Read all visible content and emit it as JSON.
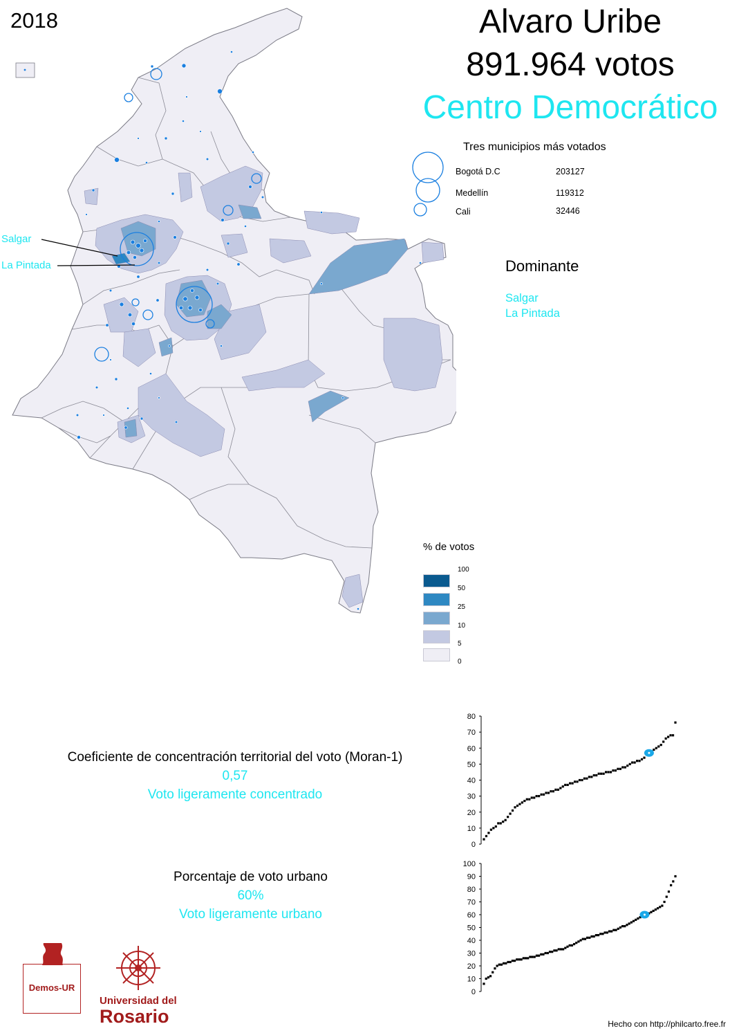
{
  "header": {
    "year": "2018",
    "candidate": "Alvaro Uribe",
    "votes": "891.964 votos",
    "party": "Centro Democrático"
  },
  "top_municipalities": {
    "title": "Tres municipios más votados",
    "items": [
      {
        "name": "Bogotá D.C",
        "value": "203127"
      },
      {
        "name": "Medellín",
        "value": "119312"
      },
      {
        "name": "Cali",
        "value": "32446"
      }
    ]
  },
  "dominant": {
    "title": "Dominante",
    "items": [
      "Salgar",
      "La Pintada"
    ]
  },
  "map_labels": [
    "Salgar",
    "La Pintada"
  ],
  "legend": {
    "title": "% de votos",
    "ticks": [
      "100",
      "50",
      "25",
      "10",
      "5",
      "0"
    ],
    "colors": [
      "#0a5a8f",
      "#2e88c2",
      "#7aa8cf",
      "#c3c9e2",
      "#efeef5"
    ]
  },
  "colors": {
    "accent": "#1ee6f0",
    "symbol": "#1a7fe0",
    "region_base": "#efeef5"
  },
  "moran": {
    "title": "Coeficiente de concentración territorial del voto (Moran-1)",
    "value": "0,57",
    "description": "Voto ligeramente concentrado"
  },
  "urban": {
    "title": "Porcentaje de voto urbano",
    "value": "60%",
    "description": "Voto ligeramente urbano"
  },
  "logos": {
    "demos": "Demos-UR",
    "rosario_line1": "Universidad del",
    "rosario_line2": "Rosario"
  },
  "footer": "Hecho con http://philcarto.free.fr",
  "chart_data": [
    {
      "type": "scatter",
      "title": "",
      "ylim": [
        0,
        80
      ],
      "yticks": [
        "0",
        "10",
        "20",
        "30",
        "40",
        "50",
        "60",
        "70",
        "80"
      ],
      "highlight_y": 57,
      "y_sorted": [
        3,
        5,
        7,
        9,
        10,
        11,
        13,
        13,
        14,
        15,
        17,
        19,
        21,
        23,
        24,
        25,
        26,
        27,
        28,
        28,
        29,
        29,
        30,
        30,
        31,
        31,
        32,
        32,
        33,
        33,
        34,
        34,
        35,
        36,
        37,
        37,
        38,
        38,
        39,
        39,
        40,
        40,
        41,
        41,
        42,
        42,
        43,
        43,
        44,
        44,
        44,
        45,
        45,
        45,
        46,
        46,
        47,
        47,
        48,
        48,
        49,
        50,
        51,
        51,
        52,
        52,
        53,
        54,
        56,
        57,
        58,
        59,
        60,
        61,
        62,
        64,
        66,
        67,
        68,
        68,
        76
      ]
    },
    {
      "type": "scatter",
      "title": "",
      "ylim": [
        0,
        100
      ],
      "yticks": [
        "0",
        "10",
        "20",
        "30",
        "40",
        "50",
        "60",
        "70",
        "80",
        "90",
        "100"
      ],
      "highlight_y": 60,
      "y_sorted": [
        6,
        10,
        11,
        12,
        15,
        18,
        20,
        21,
        21,
        22,
        22,
        23,
        23,
        24,
        24,
        25,
        25,
        25,
        26,
        26,
        26,
        27,
        27,
        27,
        28,
        28,
        29,
        29,
        30,
        30,
        31,
        31,
        32,
        32,
        33,
        33,
        33,
        34,
        35,
        36,
        36,
        37,
        38,
        39,
        40,
        41,
        41,
        42,
        42,
        43,
        43,
        44,
        44,
        45,
        45,
        46,
        46,
        47,
        47,
        48,
        48,
        49,
        50,
        51,
        51,
        52,
        53,
        54,
        55,
        56,
        57,
        58,
        59,
        60,
        60,
        61,
        62,
        63,
        64,
        65,
        66,
        67,
        70,
        74,
        78,
        83,
        86,
        90
      ]
    }
  ]
}
